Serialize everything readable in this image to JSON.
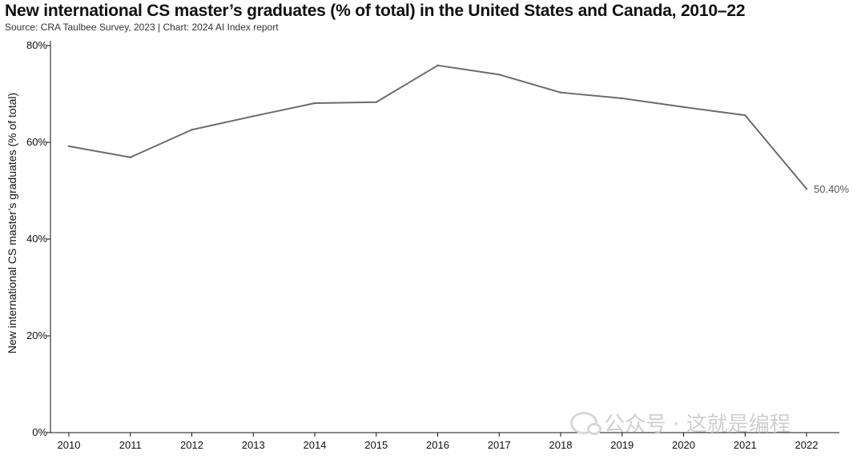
{
  "header": {
    "title": "New international CS master’s graduates (% of total) in the United States and Canada, 2010–22",
    "source": "Source: CRA Taulbee Survey, 2023 | Chart: 2024 AI Index report"
  },
  "watermark": {
    "text": "公众号 · 这就是编程"
  },
  "colors": {
    "line": "#6b6b6b",
    "axis": "#111111",
    "data_label": "#555555"
  },
  "chart_data": {
    "type": "line",
    "title": "New international CS master’s graduates (% of total) in the United States and Canada, 2010–22",
    "xlabel": "",
    "ylabel": "New international CS master’s graduates (% of total)",
    "x": [
      "2010",
      "2011",
      "2012",
      "2013",
      "2014",
      "2015",
      "2016",
      "2017",
      "2018",
      "2019",
      "2020",
      "2021",
      "2022"
    ],
    "series": [
      {
        "values": [
          59.2,
          56.9,
          62.6,
          65.4,
          68.1,
          68.3,
          75.9,
          74.0,
          70.3,
          69.1,
          67.3,
          65.6,
          50.4
        ]
      }
    ],
    "ylim": [
      0,
      80
    ],
    "yticks": [
      "0%",
      "20%",
      "40%",
      "60%",
      "80%"
    ],
    "yticks_values": [
      0,
      20,
      40,
      60,
      80
    ],
    "annotations": [
      {
        "x": "2022",
        "text": "50.40%"
      }
    ],
    "grid": false,
    "legend": "none"
  }
}
